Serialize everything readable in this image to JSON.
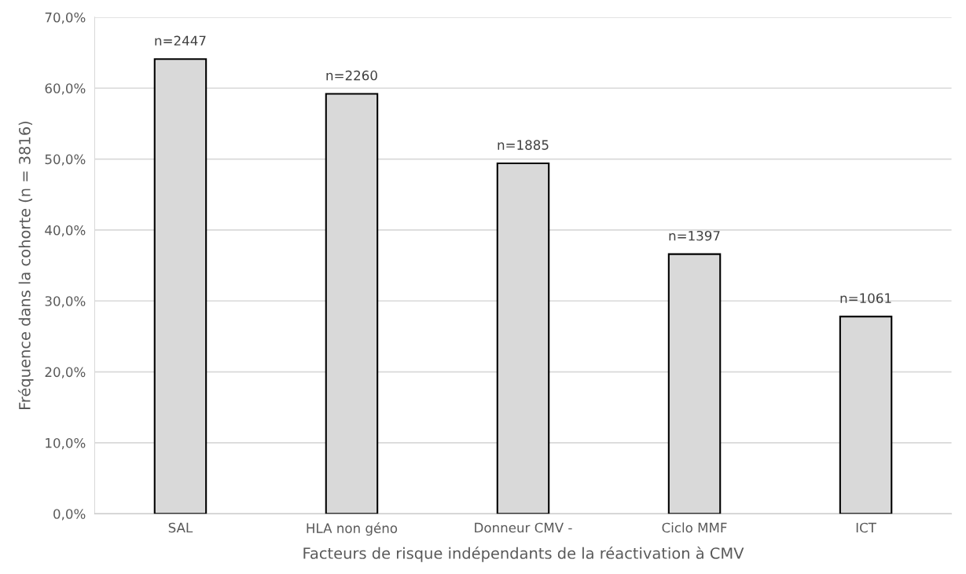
{
  "chart_data": {
    "type": "bar",
    "xlabel": "Facteurs de risque indépendants de la réactivation à CMV",
    "ylabel": "Fréquence dans la cohorte (n = 3816)",
    "categories": [
      "SAL",
      "HLA non géno",
      "Donneur CMV -",
      "Ciclo MMF",
      "ICT"
    ],
    "values": [
      64.1,
      59.2,
      49.4,
      36.6,
      27.8
    ],
    "annotations": [
      {
        "text": "n=2447",
        "x": "SAL",
        "y": 64.1
      },
      {
        "text": "n=2260",
        "x": "HLA non géno",
        "y": 59.2
      },
      {
        "text": "n=1885",
        "x": "Donneur CMV -",
        "y": 49.4
      },
      {
        "text": "n=1397",
        "x": "Ciclo MMF",
        "y": 36.6
      },
      {
        "text": "n=1061",
        "x": "ICT",
        "y": 27.8
      }
    ],
    "color": "#d9d9d9",
    "ylim": [
      0,
      70
    ],
    "yticks": [
      {
        "value": 0,
        "label": "0,0%"
      },
      {
        "value": 10,
        "label": "10,0%"
      },
      {
        "value": 20,
        "label": "20,0%"
      },
      {
        "value": 30,
        "label": "30,0%"
      },
      {
        "value": 40,
        "label": "40,0%"
      },
      {
        "value": 50,
        "label": "50,0%"
      },
      {
        "value": 60,
        "label": "60,0%"
      },
      {
        "value": 70,
        "label": "70,0%"
      }
    ],
    "grid": "y",
    "legend": false
  }
}
